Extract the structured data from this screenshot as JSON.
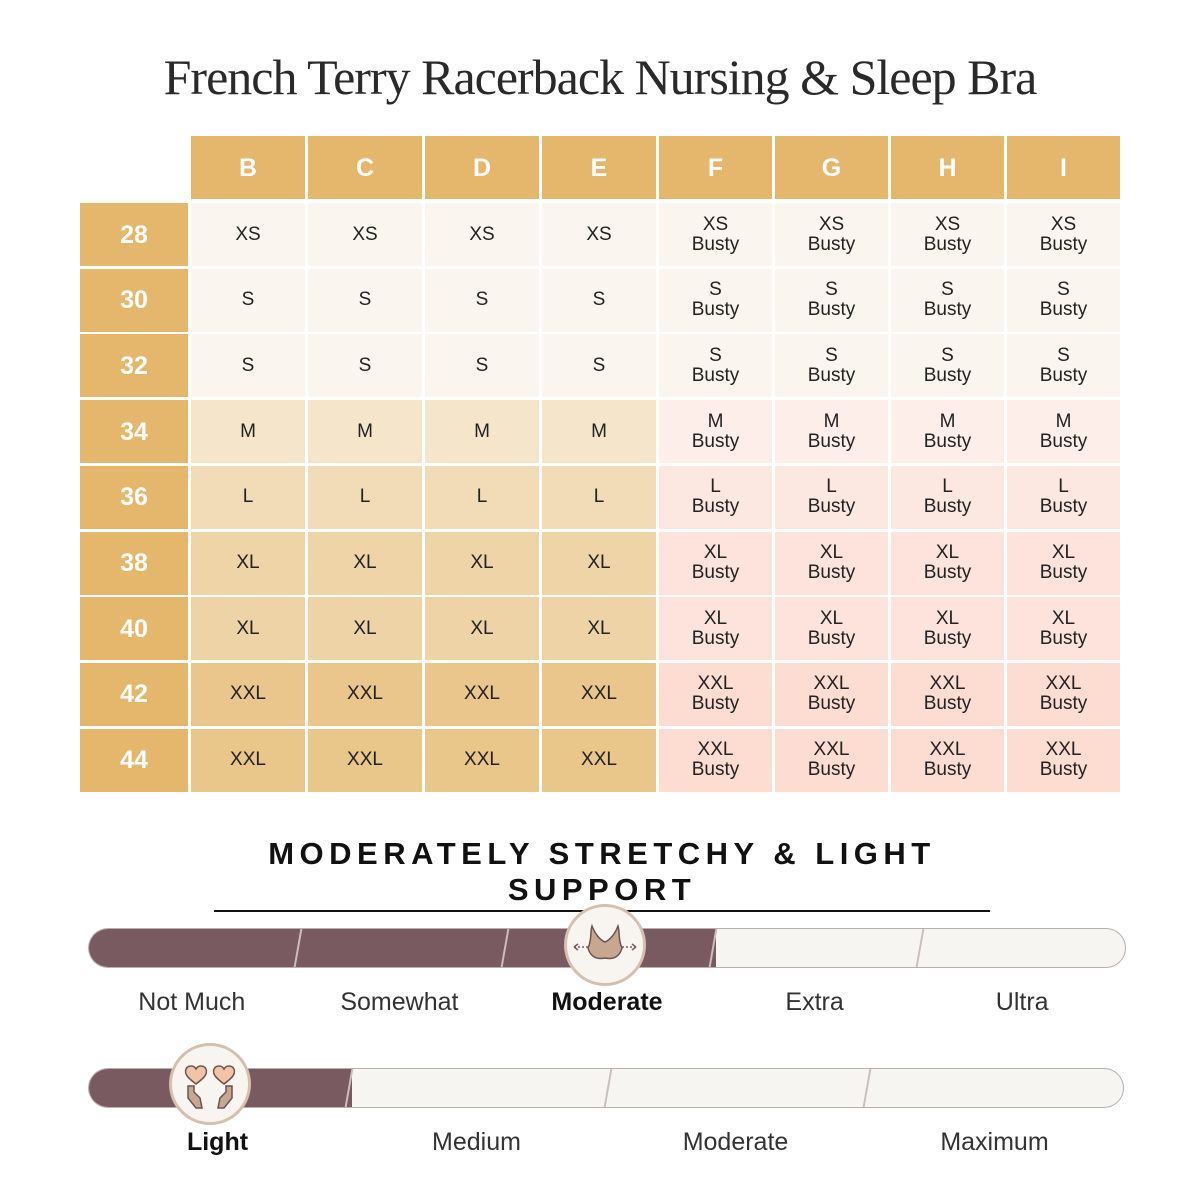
{
  "title": "French Terry Racerback Nursing & Sleep Bra",
  "cup_sizes": [
    "B",
    "C",
    "D",
    "E",
    "F",
    "G",
    "H",
    "I"
  ],
  "band_sizes": [
    "28",
    "30",
    "32",
    "34",
    "36",
    "38",
    "40",
    "42",
    "44"
  ],
  "rows": [
    [
      "XS",
      "XS",
      "XS",
      "XS",
      "XS|Busty",
      "XS|Busty",
      "XS|Busty",
      "XS|Busty"
    ],
    [
      "S",
      "S",
      "S",
      "S",
      "S|Busty",
      "S|Busty",
      "S|Busty",
      "S|Busty"
    ],
    [
      "S",
      "S",
      "S",
      "S",
      "S|Busty",
      "S|Busty",
      "S|Busty",
      "S|Busty"
    ],
    [
      "M",
      "M",
      "M",
      "M",
      "M|Busty",
      "M|Busty",
      "M|Busty",
      "M|Busty"
    ],
    [
      "L",
      "L",
      "L",
      "L",
      "L|Busty",
      "L|Busty",
      "L|Busty",
      "L|Busty"
    ],
    [
      "XL",
      "XL",
      "XL",
      "XL",
      "XL|Busty",
      "XL|Busty",
      "XL|Busty",
      "XL|Busty"
    ],
    [
      "XL",
      "XL",
      "XL",
      "XL",
      "XL|Busty",
      "XL|Busty",
      "XL|Busty",
      "XL|Busty"
    ],
    [
      "XXL",
      "XXL",
      "XXL",
      "XXL",
      "XXL|Busty",
      "XXL|Busty",
      "XXL|Busty",
      "XXL|Busty"
    ],
    [
      "XXL",
      "XXL",
      "XXL",
      "XXL",
      "XXL|Busty",
      "XXL|Busty",
      "XXL|Busty",
      "XXL|Busty"
    ]
  ],
  "colors": {
    "header": "#e4b76c",
    "left_rows": [
      "#faf6ef",
      "#faf6ef",
      "#faf6ef",
      "#f5e6cb",
      "#f1dcb7",
      "#eed4a6",
      "#edd3a5",
      "#eac68c",
      "#e9c68a"
    ],
    "right_rows": [
      "#faf6ef",
      "#faf6ef",
      "#faf6ef",
      "#fdeee9",
      "#fde7e1",
      "#fde3dc",
      "#fde3dc",
      "#fddcd2",
      "#fddcd2"
    ],
    "bar_fill": "#7a5a61"
  },
  "headline": "MODERATELY STRETCHY & LIGHT SUPPORT",
  "stretch": {
    "labels": [
      "Not Much",
      "Somewhat",
      "Moderate",
      "Extra",
      "Ultra"
    ],
    "level": 3,
    "icon": "bra-stretch-icon"
  },
  "support": {
    "labels": [
      "Light",
      "Medium",
      "Moderate",
      "Maximum"
    ],
    "level": 1,
    "icon": "hands-hearts-icon"
  }
}
